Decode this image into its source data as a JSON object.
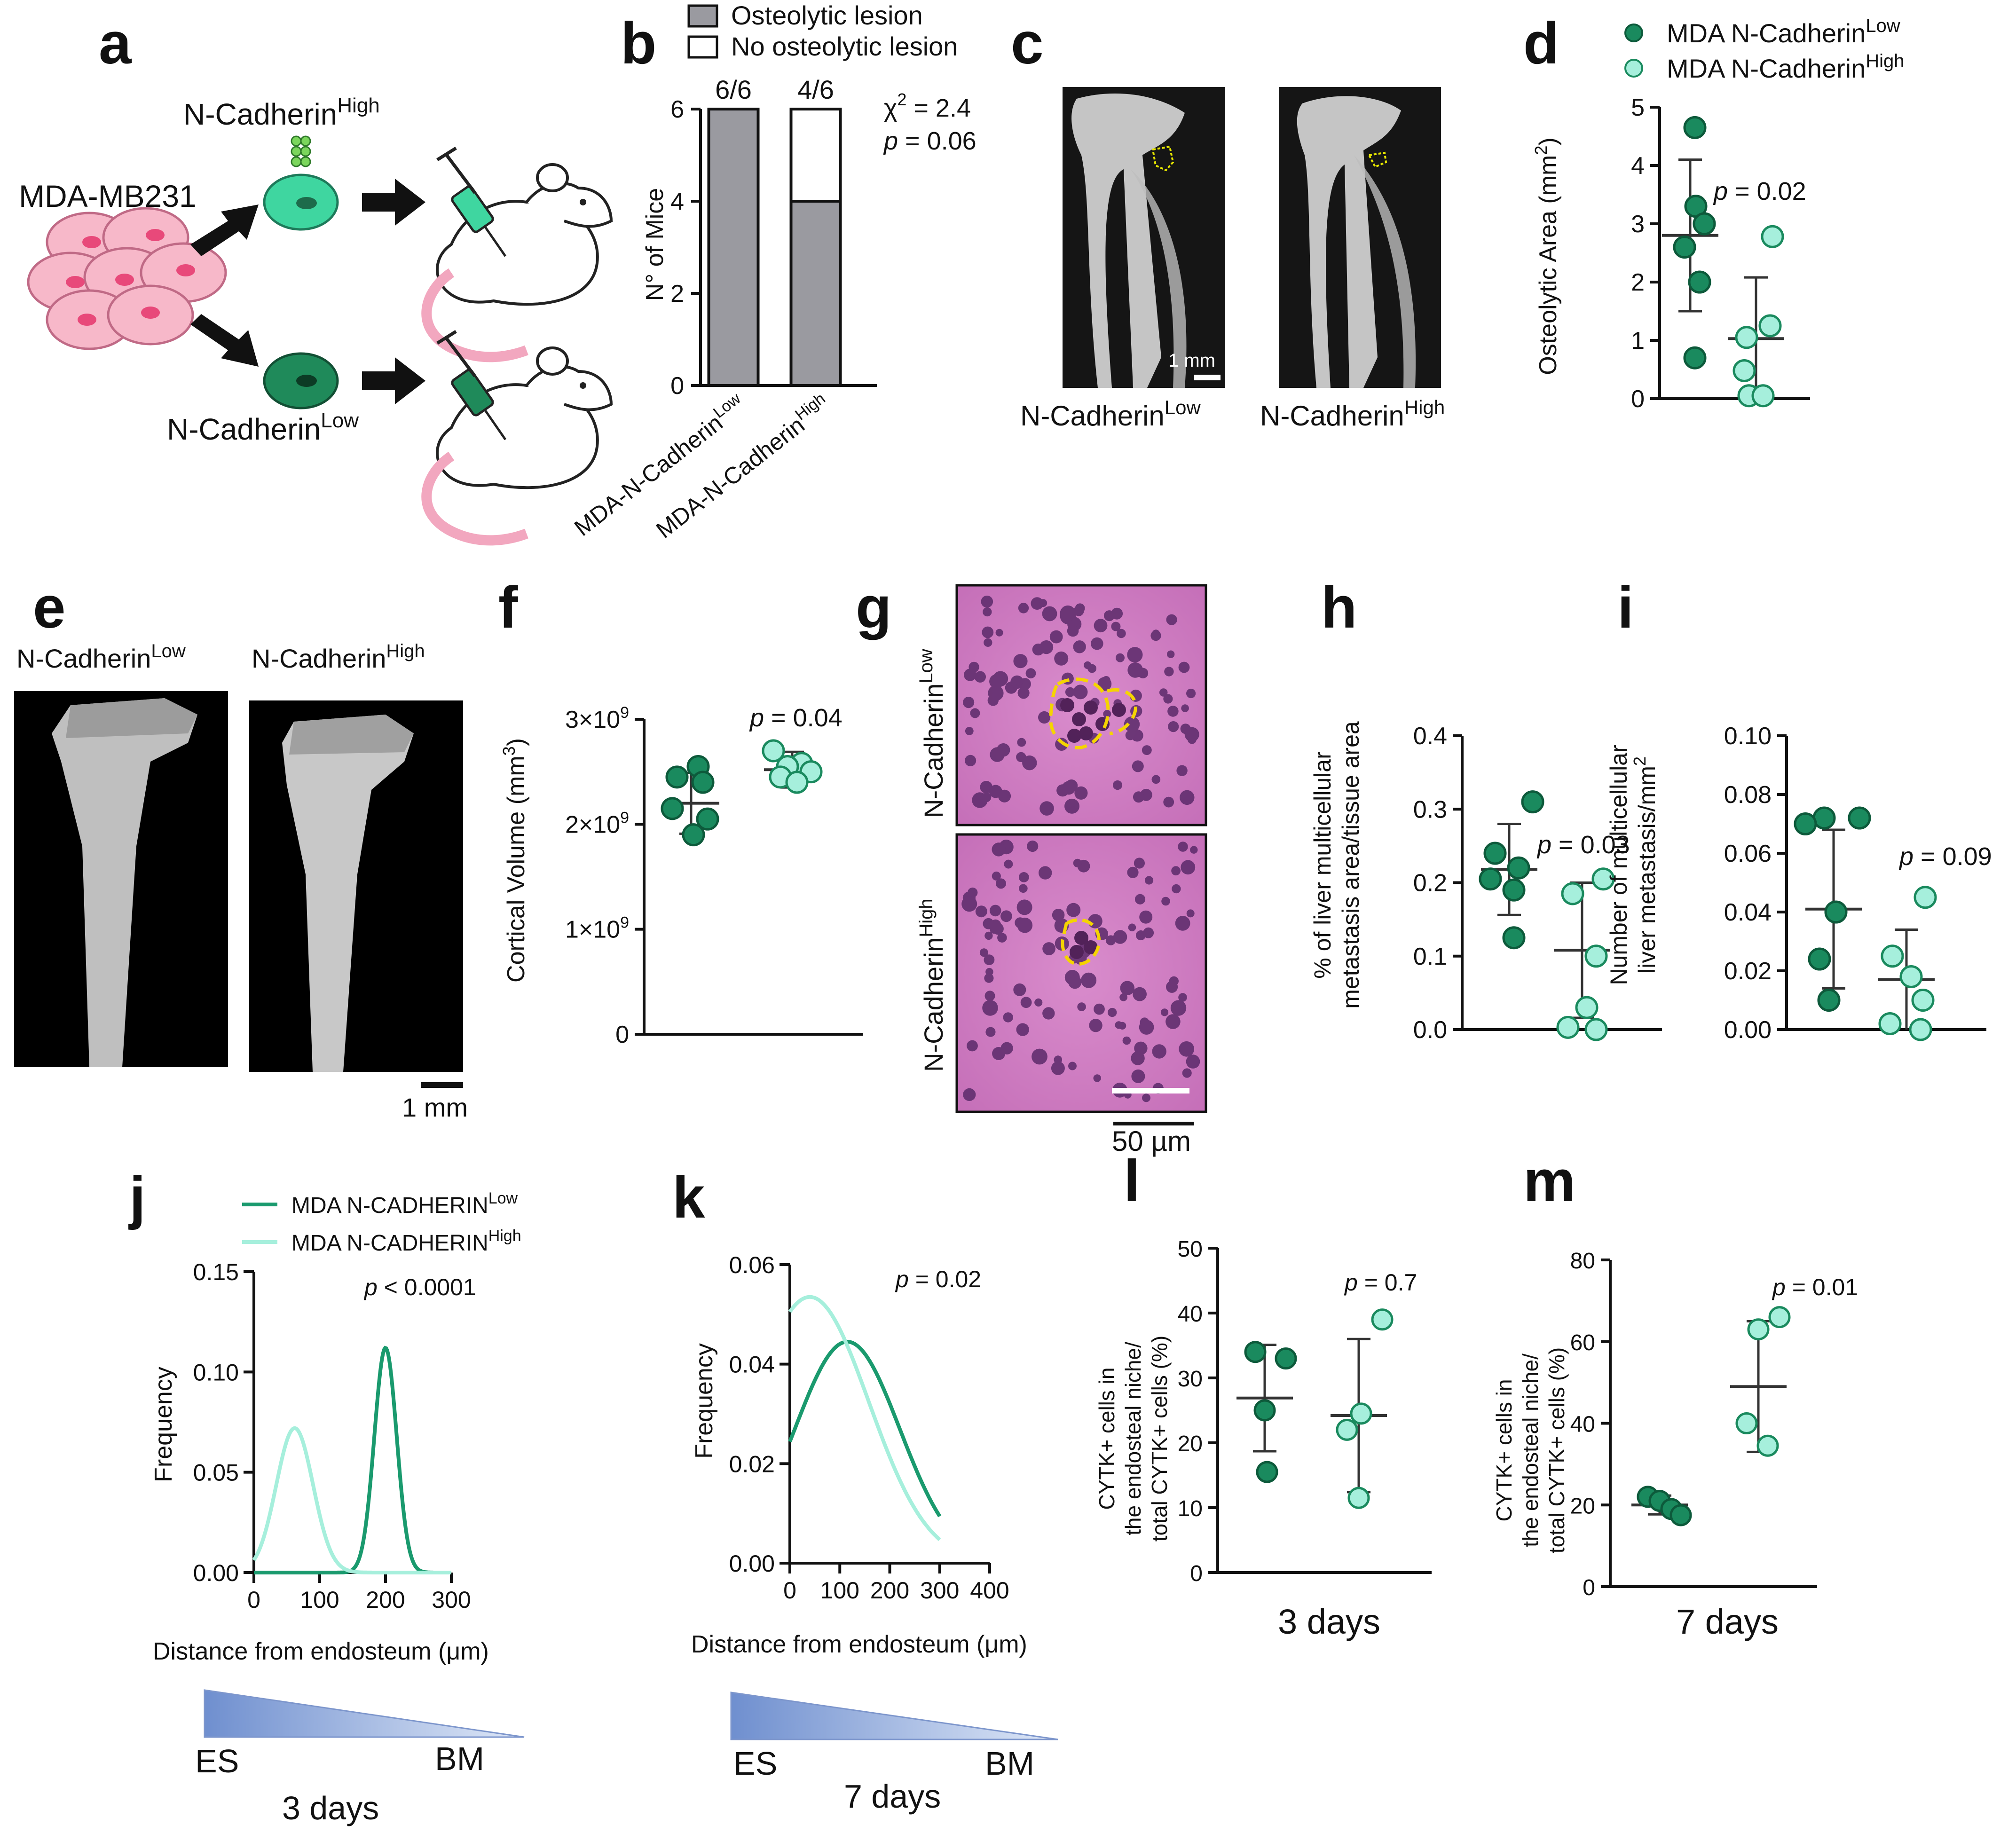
{
  "panel_letters": [
    "a",
    "b",
    "c",
    "d",
    "e",
    "f",
    "g",
    "h",
    "i",
    "j",
    "k",
    "l",
    "m"
  ],
  "colors": {
    "low": "#1a8a5e",
    "high": "#a6efdc",
    "grey": "#9a9aa0",
    "lesion": "#e6e600",
    "gradient": "#6f8fcf"
  },
  "schematic": {
    "source": "MDA-MB231",
    "high_label": "N-Cadherin",
    "high_sup": "High",
    "low_label": "N-Cadherin",
    "low_sup": "Low"
  },
  "micrographs": {
    "c_low": "N-Cadherin",
    "c_low_sup": "Low",
    "c_high": "N-Cadherin",
    "c_high_sup": "High",
    "c_scale": "1 mm",
    "e_low": "N-Cadherin",
    "e_low_sup": "Low",
    "e_high": "N-Cadherin",
    "e_high_sup": "High",
    "e_scale": "1 mm",
    "g_top": "N-Cadherin",
    "g_top_sup": "Low",
    "g_bottom": "N-Cadherin",
    "g_bottom_sup": "High",
    "g_scale": "50 µm"
  },
  "chart_data": [
    {
      "panel": "b",
      "type": "bar",
      "categories": [
        "MDA-N-Cadherin",
        "MDA-N-Cadherin"
      ],
      "category_sups": [
        "Low",
        "High"
      ],
      "series": [
        {
          "name": "Osteolytic lesion",
          "values": [
            6,
            4
          ]
        },
        {
          "name": "No osteolytic lesion",
          "values": [
            0,
            2
          ]
        }
      ],
      "bar_labels": [
        "6/6",
        "4/6"
      ],
      "ylabel": "N° of Mice",
      "ylim": [
        0,
        6
      ],
      "yticks": [
        0,
        2,
        4,
        6
      ],
      "stat_chi": "χ",
      "stat_chi_sup": "2",
      "stat_chi_value": " = 2.4",
      "stat_p": "p",
      "stat_p_value": " = 0.06",
      "legend": "top"
    },
    {
      "panel": "d",
      "type": "scatter",
      "groups": [
        "MDA N-Cadherin",
        "MDA N-Cadherin"
      ],
      "group_sups": [
        "Low",
        "High"
      ],
      "points": [
        [
          4.65,
          3.3,
          3.0,
          2.6,
          2.0,
          0.7
        ],
        [
          2.78,
          1.25,
          1.05,
          0.48,
          0.05,
          0.05
        ]
      ],
      "means": [
        2.8,
        1.03
      ],
      "sd": [
        1.3,
        1.05
      ],
      "ylabel": "Osteolytic Area (mm",
      "ylabel_sup": "2",
      "ylabel_end": ")",
      "ylim": [
        0,
        5
      ],
      "yticks": [
        0,
        1,
        2,
        3,
        4,
        5
      ],
      "p_label": "p",
      "p_value": " = 0.02",
      "legend": "top"
    },
    {
      "panel": "f",
      "type": "scatter",
      "points": [
        [
          2550000000.0,
          2450000000.0,
          2400000000.0,
          2150000000.0,
          2050000000.0,
          1900000000.0
        ],
        [
          2700000000.0,
          2580000000.0,
          2550000000.0,
          2500000000.0,
          2450000000.0,
          2400000000.0
        ]
      ],
      "means": [
        2200000000.0,
        2520000000.0
      ],
      "sd": [
        290000000.0,
        170000000.0
      ],
      "ylabel": "Cortical Volume (mm",
      "ylabel_sup": "3",
      "ylabel_end": ")",
      "ylim": [
        0,
        3000000000.0
      ],
      "ytick_labels": [
        "0",
        "1×10",
        "2×10",
        "3×10"
      ],
      "ytick_sup": "9",
      "p_label": "p",
      "p_value": " = 0.04"
    },
    {
      "panel": "h",
      "type": "scatter",
      "points": [
        [
          0.31,
          0.24,
          0.22,
          0.205,
          0.19,
          0.125
        ],
        [
          0.205,
          0.185,
          0.1,
          0.03,
          0.003,
          0.0
        ]
      ],
      "means": [
        0.218,
        0.108
      ],
      "sd": [
        0.062,
        0.092
      ],
      "ylabel_lines": [
        "% of liver multicellular",
        "metastasis area/tissue area"
      ],
      "ylim": [
        0,
        0.4
      ],
      "ytick_labels": [
        "0.0",
        "0.1",
        "0.2",
        "0.3",
        "0.4"
      ],
      "p_label": "p",
      "p_value": " = 0.03"
    },
    {
      "panel": "i",
      "type": "scatter",
      "points": [
        [
          0.072,
          0.072,
          0.07,
          0.04,
          0.024,
          0.01
        ],
        [
          0.045,
          0.025,
          0.018,
          0.01,
          0.002,
          0.0
        ]
      ],
      "means": [
        0.041,
        0.017
      ],
      "sd": [
        0.027,
        0.017
      ],
      "ylabel_lines": [
        "Number of multicellular",
        "liver metastasis/mm"
      ],
      "ylabel_sup": "2",
      "ylim": [
        0,
        0.1
      ],
      "ytick_labels": [
        "0.00",
        "0.02",
        "0.04",
        "0.06",
        "0.08",
        "0.10"
      ],
      "p_label": "p",
      "p_value": " = 0.09"
    },
    {
      "panel": "j",
      "type": "line",
      "series": [
        {
          "name": "MDA N-CADHERIN",
          "sup": "Low",
          "mu": 200,
          "sigma": 17,
          "peak": 0.112
        },
        {
          "name": "MDA N-CADHERIN",
          "sup": "High",
          "mu": 62,
          "sigma": 28,
          "peak": 0.072
        }
      ],
      "xlabel": "Distance from endosteum (",
      "xlabel_mu": "μ",
      "xlabel_end": "m)",
      "ylabel": "Frequency",
      "xlim": [
        0,
        300
      ],
      "ylim": [
        0,
        0.15
      ],
      "xticks": [
        0,
        100,
        200,
        300
      ],
      "ytick_labels": [
        "0.00",
        "0.05",
        "0.10",
        "0.15"
      ],
      "p_label": "p",
      "p_value": " < 0.0001",
      "gradient_left": "ES",
      "gradient_right": "BM",
      "caption": "3 days"
    },
    {
      "panel": "k",
      "type": "line",
      "series": [
        {
          "sup": "Low",
          "mu": 115,
          "sigma": 105,
          "peak": 0.0445
        },
        {
          "sup": "High",
          "mu": 40,
          "sigma": 118,
          "peak": 0.0535
        }
      ],
      "x_range": [
        0,
        300
      ],
      "xlabel": "Distance from endosteum (",
      "xlabel_mu": "μ",
      "xlabel_end": "m)",
      "ylabel": "Frequency",
      "xlim": [
        0,
        400
      ],
      "ylim": [
        0,
        0.06
      ],
      "xticks": [
        0,
        100,
        200,
        300,
        400
      ],
      "ytick_labels": [
        "0.00",
        "0.02",
        "0.04",
        "0.06"
      ],
      "p_label": "p",
      "p_value": " = 0.02",
      "gradient_left": "ES",
      "gradient_right": "BM",
      "caption": "7 days"
    },
    {
      "panel": "l",
      "type": "scatter",
      "points": [
        [
          34,
          33,
          25,
          15.5
        ],
        [
          39,
          24.5,
          22,
          11.5
        ]
      ],
      "means": [
        26.9,
        24.2
      ],
      "sd": [
        8.2,
        11.8
      ],
      "ylabel_lines": [
        "CYTK+ cells in",
        "the endosteal niche/",
        "total CYTK+ cells (%)"
      ],
      "ylim": [
        0,
        50
      ],
      "yticks": [
        0,
        10,
        20,
        30,
        40,
        50
      ],
      "p_label": "p",
      "p_value": " = 0.7",
      "caption": "3 days"
    },
    {
      "panel": "m",
      "type": "scatter",
      "points": [
        [
          22,
          21,
          19,
          17.5
        ],
        [
          66,
          63,
          40,
          34.5
        ]
      ],
      "means": [
        20,
        49
      ],
      "sd": [
        2.3,
        16
      ],
      "ylabel_lines": [
        "CYTK+ cells in",
        "the endosteal niche/",
        "total CYTK+ cells (%)"
      ],
      "ylim": [
        0,
        80
      ],
      "yticks": [
        0,
        20,
        40,
        60,
        80
      ],
      "p_label": "p",
      "p_value": " = 0.01",
      "caption": "7 days"
    }
  ]
}
